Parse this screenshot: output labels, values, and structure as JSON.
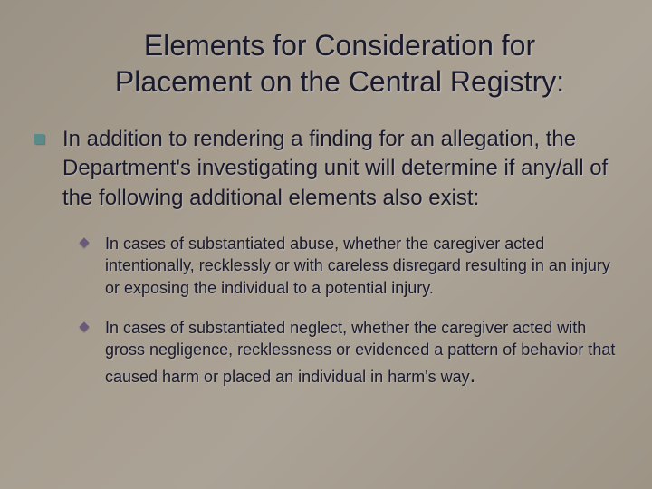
{
  "slide": {
    "background_gradient": [
      "#9a9284",
      "#a89f91",
      "#aba396",
      "#9d9486"
    ],
    "text_color": "#1a1a2e",
    "title": "Elements for Consideration for Placement on the Central Registry:",
    "title_fontsize": 32,
    "main_bullet": {
      "marker_color": "#5a8a8a",
      "marker_shape": "square",
      "text": "In addition to rendering a finding for an allegation, the Department's investigating unit will determine if any/all of the following additional elements also exist:",
      "fontsize": 24
    },
    "sub_bullets": {
      "marker_color": "#6a5a7a",
      "marker_shape": "diamond",
      "fontsize": 18,
      "items": [
        "In cases of substantiated abuse, whether the caregiver acted intentionally, recklessly or with careless disregard resulting in an injury or exposing the individual to a potential injury.",
        "In cases of substantiated neglect, whether the caregiver acted with gross negligence, recklessness or evidenced a pattern of behavior that caused harm or placed an individual in harm's way"
      ],
      "trailing_period": "."
    }
  }
}
